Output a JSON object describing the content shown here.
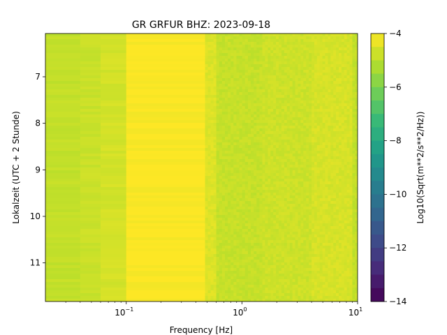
{
  "chart_data": {
    "type": "heatmap",
    "title": "GR GRFUR  BHZ: 2023-09-18",
    "xlabel": "Frequency [Hz]",
    "ylabel": "Lokalzeit (UTC + 2 Stunde)",
    "colorbar_label": "Log10(Sqrt(m**2/s**2/Hz))",
    "colormap": "viridis",
    "x_scale": "log",
    "xlim": [
      0.02,
      10
    ],
    "ylim": [
      11.83,
      6.07
    ],
    "y_inverted": true,
    "clim": [
      -14,
      -4
    ],
    "x_ticks": [
      {
        "value": 0.1,
        "base": "10",
        "exp": "−1"
      },
      {
        "value": 1,
        "base": "10",
        "exp": "0"
      },
      {
        "value": 10,
        "base": "10",
        "exp": "1"
      }
    ],
    "y_ticks": [
      {
        "value": 7,
        "label": "7"
      },
      {
        "value": 8,
        "label": "8"
      },
      {
        "value": 9,
        "label": "9"
      },
      {
        "value": 10,
        "label": "10"
      },
      {
        "value": 11,
        "label": "11"
      }
    ],
    "colorbar_ticks": [
      {
        "value": -4,
        "label": "−4"
      },
      {
        "value": -6,
        "label": "−6"
      },
      {
        "value": -8,
        "label": "−8"
      },
      {
        "value": -10,
        "label": "−10"
      },
      {
        "value": -12,
        "label": "−12"
      },
      {
        "value": -14,
        "label": "−14"
      }
    ],
    "bands": [
      {
        "f_min": 0.02,
        "f_max": 0.04,
        "value": -4.9
      },
      {
        "f_min": 0.04,
        "f_max": 0.06,
        "value": -4.8
      },
      {
        "f_min": 0.06,
        "f_max": 0.1,
        "value": -4.65
      },
      {
        "f_min": 0.1,
        "f_max": 0.48,
        "value": -4.05
      },
      {
        "f_min": 0.48,
        "f_max": 0.6,
        "value": -4.5
      },
      {
        "f_min": 0.6,
        "f_max": 1.5,
        "value": -4.85
      },
      {
        "f_min": 1.5,
        "f_max": 4,
        "value": -4.75
      },
      {
        "f_min": 4,
        "f_max": 9,
        "value": -4.6
      },
      {
        "f_min": 9,
        "f_max": 10,
        "value": -4.9
      }
    ]
  }
}
